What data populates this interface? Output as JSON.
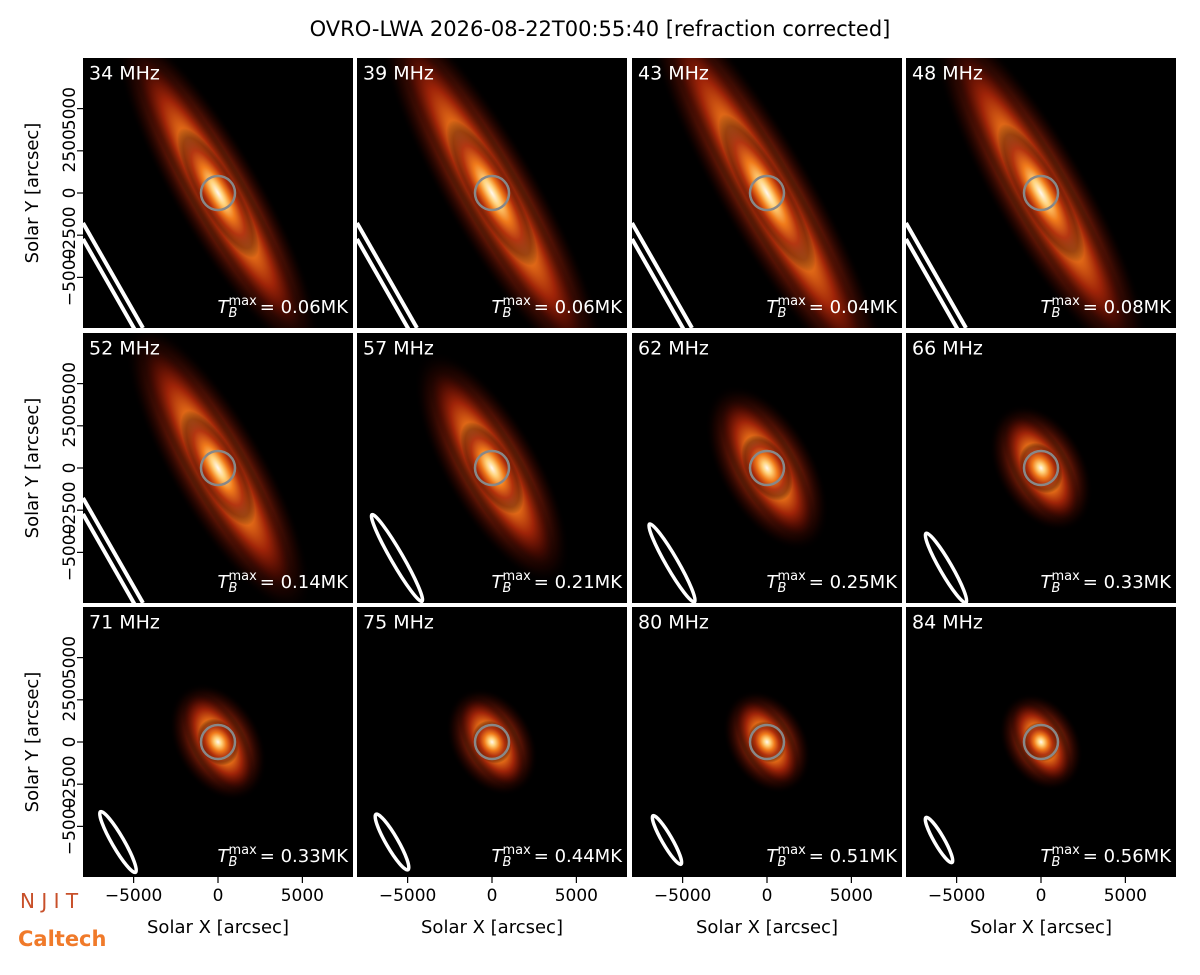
{
  "title": "OVRO-LWA 2026-08-22T00:55:40 [refraction corrected]",
  "annotation_symbol": {
    "base": "T",
    "sub": "B",
    "sup": "max"
  },
  "logos": [
    "N J I T",
    "Caltech"
  ],
  "chart_data": [
    {
      "type": "image",
      "title": "34 MHz",
      "annotation": "= 0.06MK",
      "xlim": [
        -8000,
        8000
      ],
      "ylim": [
        -8000,
        8000
      ],
      "ylabel": "Solar Y [arcsec]",
      "yticks": [
        {
          "value": -5000,
          "label": "−5000"
        },
        {
          "value": -2500,
          "label": "−2500"
        },
        0,
        2500,
        5000
      ]
    },
    {
      "type": "image",
      "title": "39 MHz",
      "annotation": "= 0.06MK",
      "xlim": [
        -8000,
        8000
      ],
      "ylim": [
        -8000,
        8000
      ]
    },
    {
      "type": "image",
      "title": "43 MHz",
      "annotation": "= 0.04MK",
      "xlim": [
        -8000,
        8000
      ],
      "ylim": [
        -8000,
        8000
      ]
    },
    {
      "type": "image",
      "title": "48 MHz",
      "annotation": "= 0.08MK",
      "xlim": [
        -8000,
        8000
      ],
      "ylim": [
        -8000,
        8000
      ]
    },
    {
      "type": "image",
      "title": "52 MHz",
      "annotation": "= 0.14MK",
      "xlim": [
        -8000,
        8000
      ],
      "ylim": [
        -8000,
        8000
      ],
      "ylabel": "Solar Y [arcsec]",
      "yticks": [
        {
          "value": -5000,
          "label": "−5000"
        },
        {
          "value": -2500,
          "label": "−2500"
        },
        0,
        2500,
        5000
      ]
    },
    {
      "type": "image",
      "title": "57 MHz",
      "annotation": "= 0.21MK",
      "xlim": [
        -8000,
        8000
      ],
      "ylim": [
        -8000,
        8000
      ]
    },
    {
      "type": "image",
      "title": "62 MHz",
      "annotation": "= 0.25MK",
      "xlim": [
        -8000,
        8000
      ],
      "ylim": [
        -8000,
        8000
      ]
    },
    {
      "type": "image",
      "title": "66 MHz",
      "annotation": "= 0.33MK",
      "xlim": [
        -8000,
        8000
      ],
      "ylim": [
        -8000,
        8000
      ]
    },
    {
      "type": "image",
      "title": "71 MHz",
      "annotation": "= 0.33MK",
      "xlim": [
        -8000,
        8000
      ],
      "ylim": [
        -8000,
        8000
      ],
      "ylabel": "Solar Y [arcsec]",
      "yticks": [
        {
          "value": -5000,
          "label": "−5000"
        },
        {
          "value": -2500,
          "label": "−2500"
        },
        0,
        2500,
        5000
      ],
      "xlabel": "Solar X [arcsec]",
      "xticks": [
        {
          "value": -5000,
          "label": "−5000"
        },
        0,
        5000
      ]
    },
    {
      "type": "image",
      "title": "75 MHz",
      "annotation": "= 0.44MK",
      "xlim": [
        -8000,
        8000
      ],
      "ylim": [
        -8000,
        8000
      ],
      "xlabel": "Solar X [arcsec]",
      "xticks": [
        {
          "value": -5000,
          "label": "−5000"
        },
        0,
        5000
      ]
    },
    {
      "type": "image",
      "title": "80 MHz",
      "annotation": "= 0.51MK",
      "xlim": [
        -8000,
        8000
      ],
      "ylim": [
        -8000,
        8000
      ],
      "xlabel": "Solar X [arcsec]",
      "xticks": [
        {
          "value": -5000,
          "label": "−5000"
        },
        0,
        5000
      ]
    },
    {
      "type": "image",
      "title": "84 MHz",
      "annotation": "= 0.56MK",
      "xlim": [
        -8000,
        8000
      ],
      "ylim": [
        -8000,
        8000
      ],
      "xlabel": "Solar X [arcsec]",
      "xticks": [
        {
          "value": -5000,
          "label": "−5000"
        },
        0,
        5000
      ]
    }
  ]
}
